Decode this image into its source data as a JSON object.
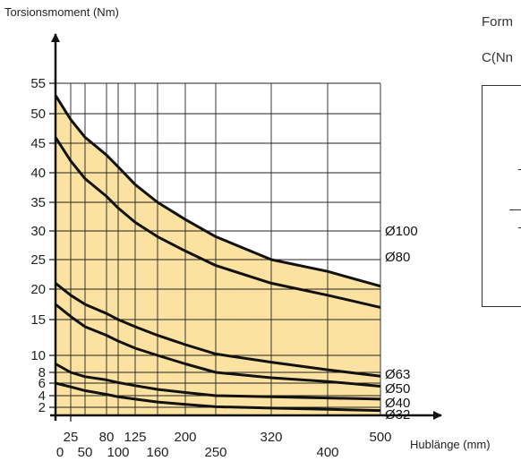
{
  "chart_data": {
    "type": "area",
    "ylabel": "Torsionsmoment (Nm)",
    "xlabel": "Hublänge (mm)",
    "x_ticks_top": [
      "25",
      "80",
      "125",
      "200",
      "320",
      "500"
    ],
    "x_ticks_bottom": [
      "0",
      "50",
      "100",
      "160",
      "250",
      "400"
    ],
    "y_ticks": [
      "2",
      "4",
      "6",
      "8",
      "10",
      "15",
      "20",
      "25",
      "30",
      "35",
      "40",
      "45",
      "50",
      "55"
    ],
    "fill_color": "#fbe2a0",
    "line_color": "#111111",
    "grid": true,
    "series": [
      {
        "name": "Ø100",
        "x": [
          0,
          25,
          50,
          80,
          100,
          125,
          160,
          200,
          250,
          320,
          400,
          500
        ],
        "y": [
          53,
          49,
          46,
          43,
          41,
          38,
          35,
          32,
          29,
          25,
          23,
          20.5
        ]
      },
      {
        "name": "Ø80",
        "x": [
          0,
          25,
          50,
          80,
          100,
          125,
          160,
          200,
          250,
          320,
          400,
          500
        ],
        "y": [
          46,
          42,
          39,
          36,
          34,
          31.5,
          29,
          26.5,
          24,
          21,
          19,
          17
        ]
      },
      {
        "name": "Ø63",
        "x": [
          0,
          25,
          50,
          80,
          100,
          125,
          160,
          200,
          250,
          320,
          400,
          500
        ],
        "y": [
          21,
          19,
          17.5,
          16,
          15,
          14,
          12.8,
          11.5,
          10.2,
          9.2,
          8.3,
          7.3
        ]
      },
      {
        "name": "Ø50",
        "x": [
          0,
          25,
          50,
          80,
          100,
          125,
          160,
          200,
          250,
          320,
          400,
          500
        ],
        "y": [
          17.5,
          15.5,
          14,
          12.8,
          12,
          11,
          10,
          9,
          8,
          7,
          6.3,
          5.5
        ]
      },
      {
        "name": "Ø40",
        "x": [
          0,
          25,
          50,
          80,
          100,
          125,
          160,
          200,
          250,
          320,
          400,
          500
        ],
        "y": [
          9,
          8,
          7.2,
          6.6,
          6.1,
          5.6,
          5,
          4.5,
          4,
          3.8,
          3.6,
          3.4
        ]
      },
      {
        "name": "Ø32",
        "x": [
          0,
          25,
          50,
          80,
          100,
          125,
          160,
          200,
          250,
          320,
          400,
          500
        ],
        "y": [
          6,
          5.4,
          4.8,
          4.2,
          3.8,
          3.4,
          2.9,
          2.5,
          2.1,
          1.8,
          1.5,
          1.2
        ]
      }
    ]
  },
  "side_panel": {
    "line1": "Form",
    "line2": "C(Nn"
  }
}
